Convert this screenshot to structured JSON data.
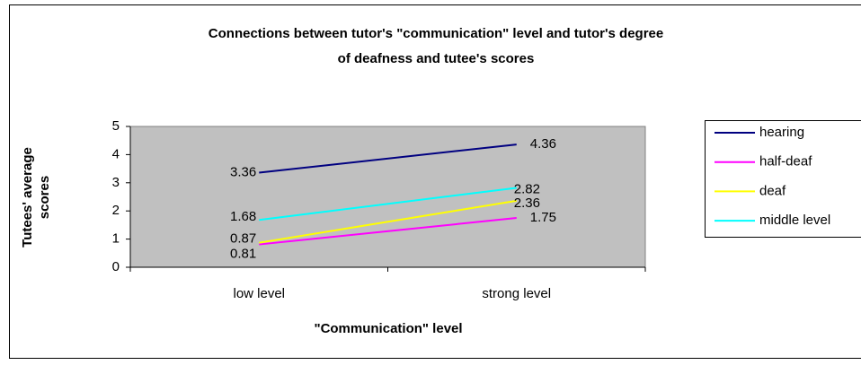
{
  "chart_data": {
    "type": "line",
    "title": [
      "Connections between tutor's \"communication\" level and tutor's degree",
      "of deafness and tutee's scores"
    ],
    "x_label": "\"Communication\" level",
    "y_label": [
      "Tutees' average",
      "scores"
    ],
    "categories": [
      "low level",
      "strong level"
    ],
    "series": [
      {
        "name": "hearing",
        "color": "#000080",
        "values": [
          3.36,
          4.36
        ]
      },
      {
        "name": "half-deaf",
        "color": "#ff00ff",
        "values": [
          0.81,
          1.75
        ]
      },
      {
        "name": "deaf",
        "color": "#ffff00",
        "values": [
          0.87,
          2.36
        ]
      },
      {
        "name": "middle level",
        "color": "#00ffff",
        "values": [
          1.68,
          2.82
        ]
      }
    ],
    "ylim": [
      0,
      5
    ],
    "yticks": [
      0,
      1,
      2,
      3,
      4,
      5
    ],
    "grid": false,
    "legend": "right"
  }
}
